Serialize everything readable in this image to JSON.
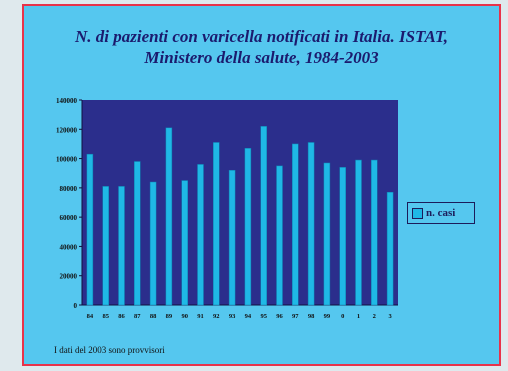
{
  "chart_data": {
    "type": "bar",
    "title": "N. di pazienti con varicella notificati in Italia. ISTAT, Ministero della salute, 1984-2003",
    "title_line1": "N. di pazienti con varicella notificati in Italia. ISTAT,",
    "title_line2": "Ministero della salute, 1984-2003",
    "categories": [
      "84",
      "85",
      "86",
      "87",
      "88",
      "89",
      "90",
      "91",
      "92",
      "93",
      "94",
      "95",
      "96",
      "97",
      "98",
      "99",
      "0",
      "1",
      "2",
      "3"
    ],
    "series": [
      {
        "name": "n. casi",
        "values": [
          103000,
          81000,
          81000,
          98000,
          84000,
          121000,
          85000,
          96000,
          111000,
          92000,
          107000,
          122000,
          95000,
          110000,
          111000,
          97000,
          94000,
          99000,
          99000,
          77000
        ]
      }
    ],
    "yticks": [
      "0",
      "20000",
      "40000",
      "60000",
      "80000",
      "100000",
      "120000",
      "140000"
    ],
    "ylim": [
      0,
      140000
    ],
    "xlabel": "",
    "ylabel": "",
    "grid": false,
    "legend_position": "right",
    "plot_background": "#2b2e8c",
    "bar_color": "#1fb8e6",
    "footnote": "I dati del 2003 sono provvisori"
  }
}
